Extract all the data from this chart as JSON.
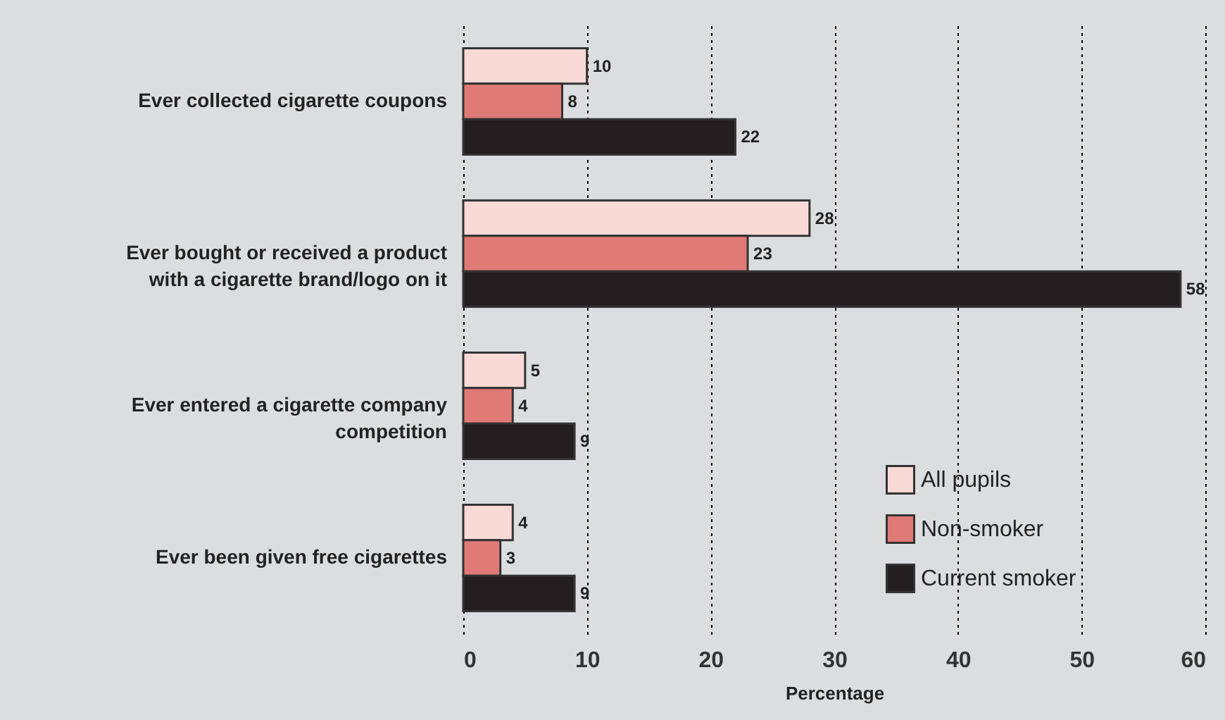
{
  "chart_data": {
    "type": "bar",
    "orientation": "horizontal",
    "xlabel": "Percentage",
    "categories": [
      "Ever collected cigarette coupons",
      "Ever bought or received a product with a cigarette brand/logo on it",
      "Ever entered a cigarette company competition",
      "Ever been given free cigarettes"
    ],
    "series": [
      {
        "name": "All pupils",
        "color": "#f9d9d5",
        "values": [
          10,
          28,
          5,
          4
        ]
      },
      {
        "name": "Non-smoker",
        "color": "#e07a77",
        "values": [
          8,
          23,
          4,
          3
        ]
      },
      {
        "name": "Current smoker",
        "color": "#231f20",
        "values": [
          22,
          58,
          9,
          9
        ]
      }
    ],
    "xlim": [
      0,
      60
    ],
    "xticks": [
      0,
      10,
      20,
      30,
      40,
      50,
      60
    ],
    "grid": "x",
    "legend": "bottom right",
    "data_labels": true
  }
}
